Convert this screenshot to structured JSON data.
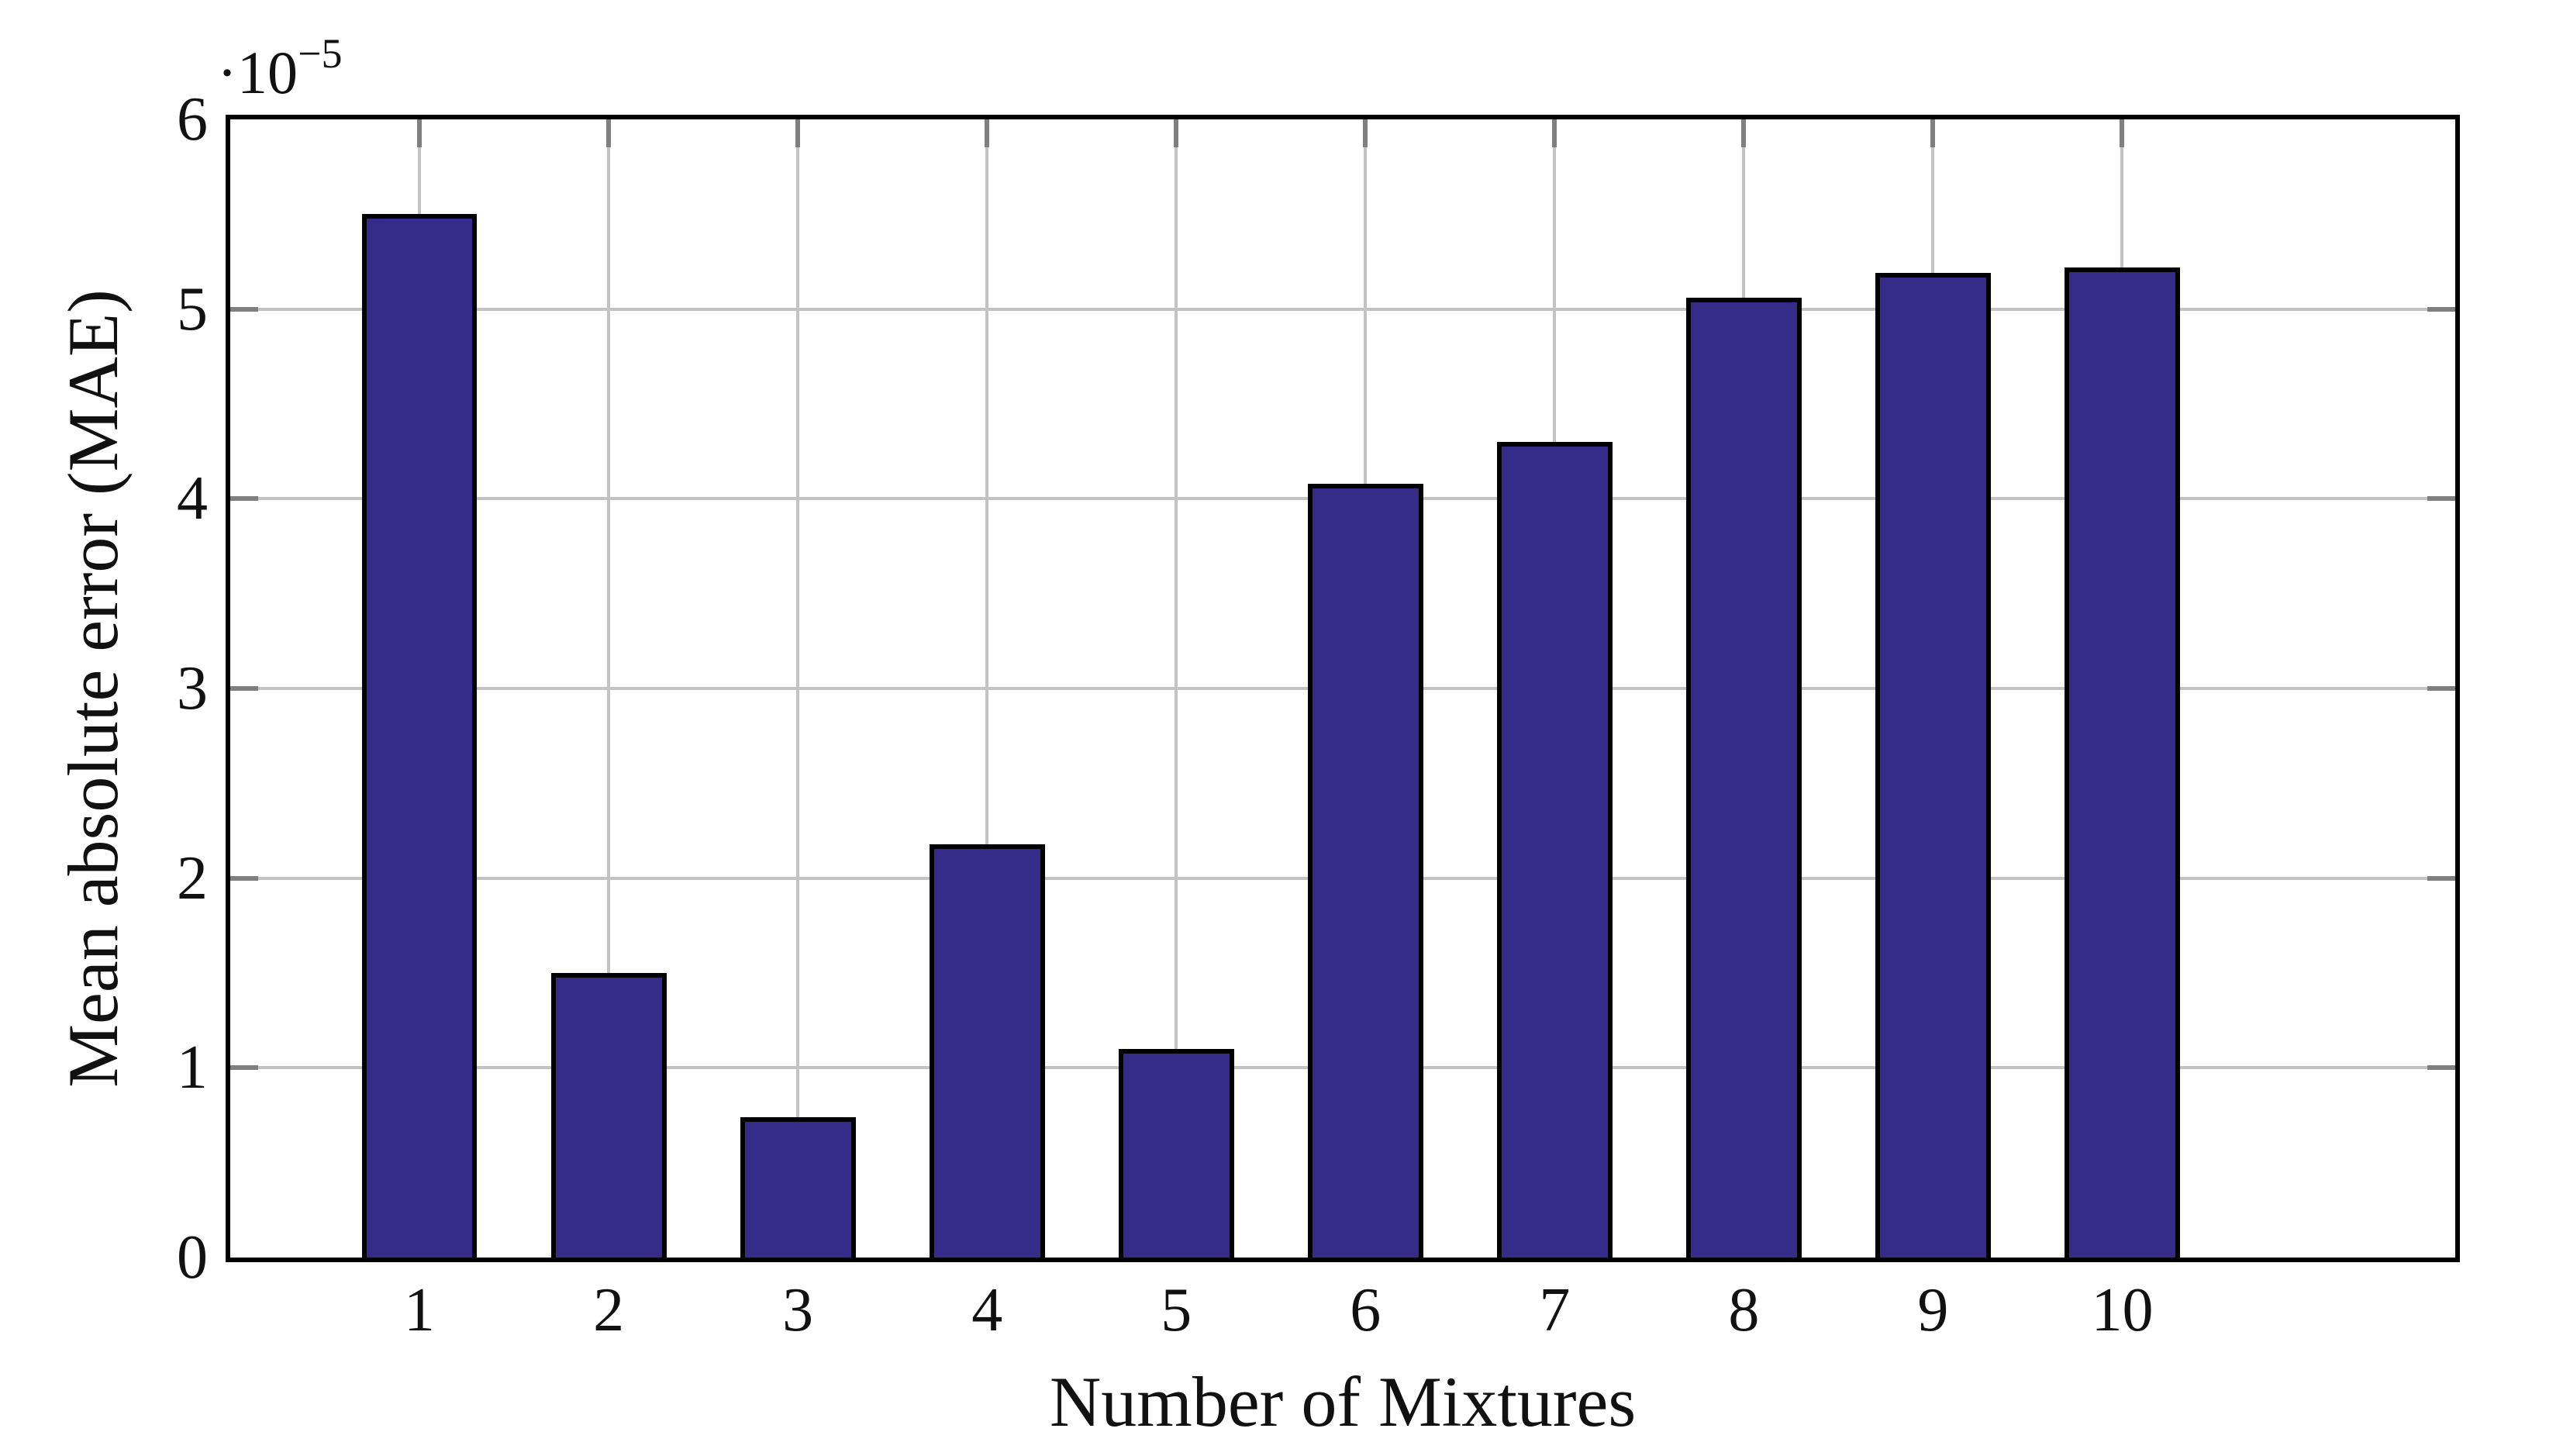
{
  "chart_data": {
    "type": "bar",
    "title": "",
    "xlabel": "Number of Mixtures",
    "ylabel": "Mean absolute error (MAE)",
    "y_scale_label": {
      "prefix": "·10",
      "exponent": "−5"
    },
    "categories": [
      "1",
      "2",
      "3",
      "4",
      "5",
      "6",
      "7",
      "8",
      "9",
      "10"
    ],
    "values": [
      5.5,
      1.5,
      0.74,
      2.18,
      1.1,
      4.08,
      4.3,
      5.06,
      5.19,
      5.22
    ],
    "y_ticks": [
      "0",
      "1",
      "2",
      "3",
      "4",
      "5",
      "6"
    ],
    "ylim": [
      0,
      6
    ],
    "xlim": [
      0,
      11.76
    ],
    "grid": true,
    "legend": null,
    "bar_width_units": 0.61,
    "colors": {
      "bar_fill": "#352C8A",
      "bar_border": "#000000",
      "axis": "#000000",
      "gridline": "#c3c3c3",
      "tick": "#7f7f7f",
      "text": "#111111",
      "background": "#ffffff"
    }
  }
}
